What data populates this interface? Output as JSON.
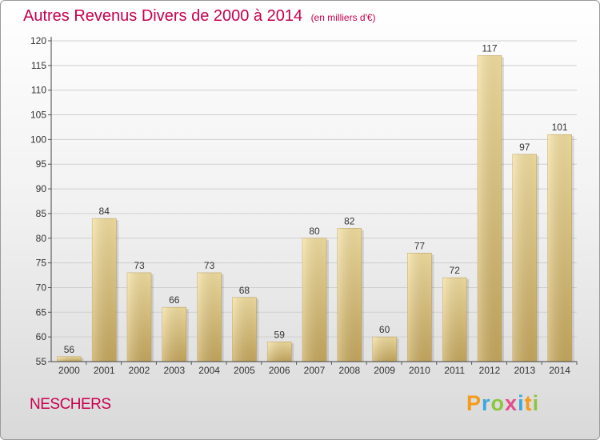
{
  "chart_data": {
    "type": "bar",
    "title": "Autres Revenus Divers de 2000 à 2014",
    "subtitle": "(en milliers d'€)",
    "categories": [
      "2000",
      "2001",
      "2002",
      "2003",
      "2004",
      "2005",
      "2006",
      "2007",
      "2008",
      "2009",
      "2010",
      "2011",
      "2012",
      "2013",
      "2014"
    ],
    "values": [
      56,
      84,
      73,
      66,
      73,
      68,
      59,
      80,
      82,
      60,
      77,
      72,
      117,
      97,
      101
    ],
    "ylim": [
      55,
      120
    ],
    "yticks": [
      55,
      60,
      65,
      70,
      75,
      80,
      85,
      90,
      95,
      100,
      105,
      110,
      115,
      120
    ],
    "grid": true,
    "bar_color": "#e8cc82",
    "xlabel": "",
    "ylabel": ""
  },
  "footer": {
    "commune": "NESCHERS",
    "logo": "Proxiti"
  }
}
